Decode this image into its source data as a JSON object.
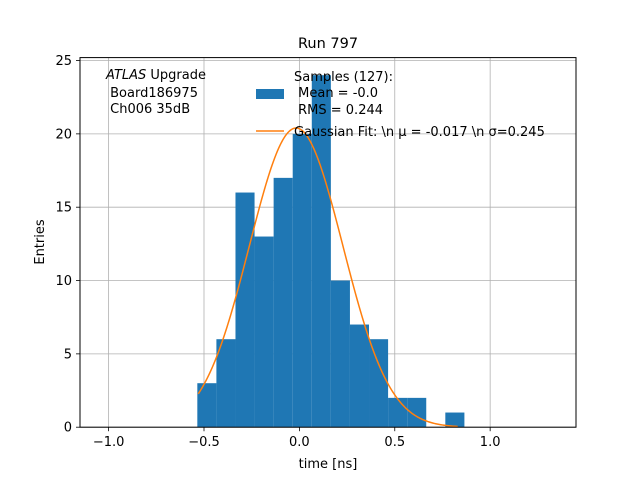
{
  "chart_data": {
    "type": "bar",
    "title": "Run 797",
    "xlabel": "time [ns]",
    "ylabel": "Entries",
    "xlim": [
      -1.15,
      1.45
    ],
    "ylim": [
      0,
      25.2
    ],
    "grid": true,
    "legend_position": "top-right",
    "xticks": [
      -1.0,
      -0.5,
      0.0,
      0.5,
      1.0
    ],
    "xtick_labels": [
      "−1.0",
      "−0.5",
      "0.0",
      "0.5",
      "1.0"
    ],
    "yticks": [
      0,
      5,
      10,
      15,
      20,
      25
    ],
    "ytick_labels": [
      "0",
      "5",
      "10",
      "15",
      "20",
      "25"
    ],
    "annotation": {
      "lines": [
        {
          "italic": "ATLAS",
          "rest": " Upgrade"
        },
        {
          "italic": "",
          "rest": " Board186975"
        },
        {
          "italic": "",
          "rest": " Ch006 35dB"
        }
      ]
    },
    "series": [
      {
        "kind": "histogram",
        "color": "#1f77b4",
        "legend_lines": [
          "Samples (127):",
          " Mean = -0.0",
          " RMS = 0.244"
        ],
        "bins": [
          {
            "x0": -0.535,
            "x1": -0.435,
            "count": 3
          },
          {
            "x0": -0.435,
            "x1": -0.335,
            "count": 6
          },
          {
            "x0": -0.335,
            "x1": -0.235,
            "count": 16
          },
          {
            "x0": -0.235,
            "x1": -0.135,
            "count": 13
          },
          {
            "x0": -0.135,
            "x1": -0.035,
            "count": 17
          },
          {
            "x0": -0.035,
            "x1": 0.065,
            "count": 20
          },
          {
            "x0": 0.065,
            "x1": 0.165,
            "count": 24
          },
          {
            "x0": 0.165,
            "x1": 0.265,
            "count": 10
          },
          {
            "x0": 0.265,
            "x1": 0.365,
            "count": 7
          },
          {
            "x0": 0.365,
            "x1": 0.465,
            "count": 6
          },
          {
            "x0": 0.465,
            "x1": 0.565,
            "count": 2
          },
          {
            "x0": 0.565,
            "x1": 0.665,
            "count": 2
          },
          {
            "x0": 0.665,
            "x1": 0.765,
            "count": 0
          },
          {
            "x0": 0.765,
            "x1": 0.865,
            "count": 1
          }
        ]
      },
      {
        "kind": "line",
        "color": "#ff7f0e",
        "legend_text": "Gaussian Fit: \\n μ = -0.017 \\n σ=0.245",
        "fit": {
          "amplitude": 20.4,
          "mu": -0.017,
          "sigma": 0.245
        },
        "x_range": [
          -0.53,
          0.83
        ]
      }
    ]
  }
}
